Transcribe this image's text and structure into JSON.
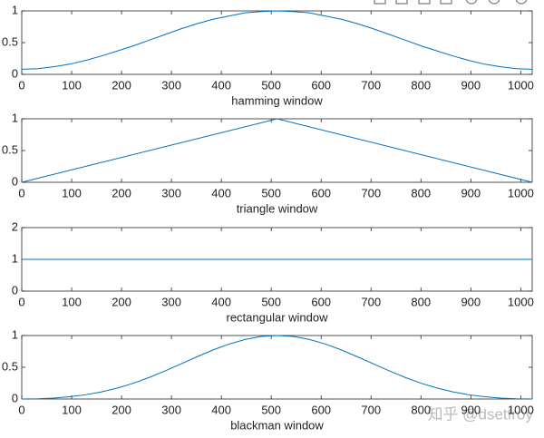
{
  "chart_data": [
    {
      "type": "line",
      "xlabel": "hamming window",
      "color": "#0072bd",
      "x": [
        0,
        32,
        64,
        96,
        128,
        160,
        192,
        224,
        256,
        288,
        320,
        352,
        384,
        416,
        448,
        480,
        512,
        544,
        576,
        608,
        640,
        672,
        704,
        736,
        768,
        800,
        832,
        864,
        896,
        928,
        960,
        992,
        1023
      ],
      "values": [
        0.08,
        0.09,
        0.12,
        0.16,
        0.22,
        0.29,
        0.37,
        0.45,
        0.54,
        0.63,
        0.72,
        0.8,
        0.87,
        0.92,
        0.97,
        0.99,
        1,
        0.99,
        0.97,
        0.92,
        0.87,
        0.8,
        0.72,
        0.63,
        0.54,
        0.45,
        0.37,
        0.29,
        0.22,
        0.16,
        0.12,
        0.09,
        0.08
      ],
      "xlim": [
        0,
        1023
      ],
      "xticks": [
        0,
        100,
        200,
        300,
        400,
        500,
        600,
        700,
        800,
        900,
        1000
      ],
      "ylim": [
        0,
        1
      ],
      "yticks": [
        0,
        0.5,
        1
      ]
    },
    {
      "type": "line",
      "xlabel": "triangle window",
      "color": "#0072bd",
      "x": [
        0,
        512,
        1023
      ],
      "values": [
        0,
        1,
        0
      ],
      "xlim": [
        0,
        1023
      ],
      "xticks": [
        0,
        100,
        200,
        300,
        400,
        500,
        600,
        700,
        800,
        900,
        1000
      ],
      "ylim": [
        0,
        1
      ],
      "yticks": [
        0,
        0.5,
        1
      ]
    },
    {
      "type": "line",
      "xlabel": "rectangular window",
      "color": "#0072bd",
      "x": [
        0,
        1023
      ],
      "values": [
        1,
        1
      ],
      "xlim": [
        0,
        1023
      ],
      "xticks": [
        0,
        100,
        200,
        300,
        400,
        500,
        600,
        700,
        800,
        900,
        1000
      ],
      "ylim": [
        0,
        2
      ],
      "yticks": [
        0,
        1,
        2
      ]
    },
    {
      "type": "line",
      "xlabel": "blackman window",
      "color": "#0072bd",
      "x": [
        0,
        32,
        64,
        96,
        128,
        160,
        192,
        224,
        256,
        288,
        320,
        352,
        384,
        416,
        448,
        480,
        512,
        544,
        576,
        608,
        640,
        672,
        704,
        736,
        768,
        800,
        832,
        864,
        896,
        928,
        960,
        992,
        1023
      ],
      "values": [
        0,
        0.004,
        0.015,
        0.035,
        0.067,
        0.112,
        0.173,
        0.249,
        0.341,
        0.445,
        0.556,
        0.668,
        0.775,
        0.867,
        0.939,
        0.985,
        1,
        0.985,
        0.939,
        0.867,
        0.775,
        0.668,
        0.556,
        0.445,
        0.341,
        0.249,
        0.173,
        0.112,
        0.067,
        0.035,
        0.015,
        0.004,
        0
      ],
      "xlim": [
        0,
        1023
      ],
      "xticks": [
        0,
        100,
        200,
        300,
        400,
        500,
        600,
        700,
        800,
        900,
        1000
      ],
      "ylim": [
        0,
        1
      ],
      "yticks": [
        0,
        0.5,
        1
      ]
    }
  ],
  "watermark": "知乎 @dsetfroy"
}
